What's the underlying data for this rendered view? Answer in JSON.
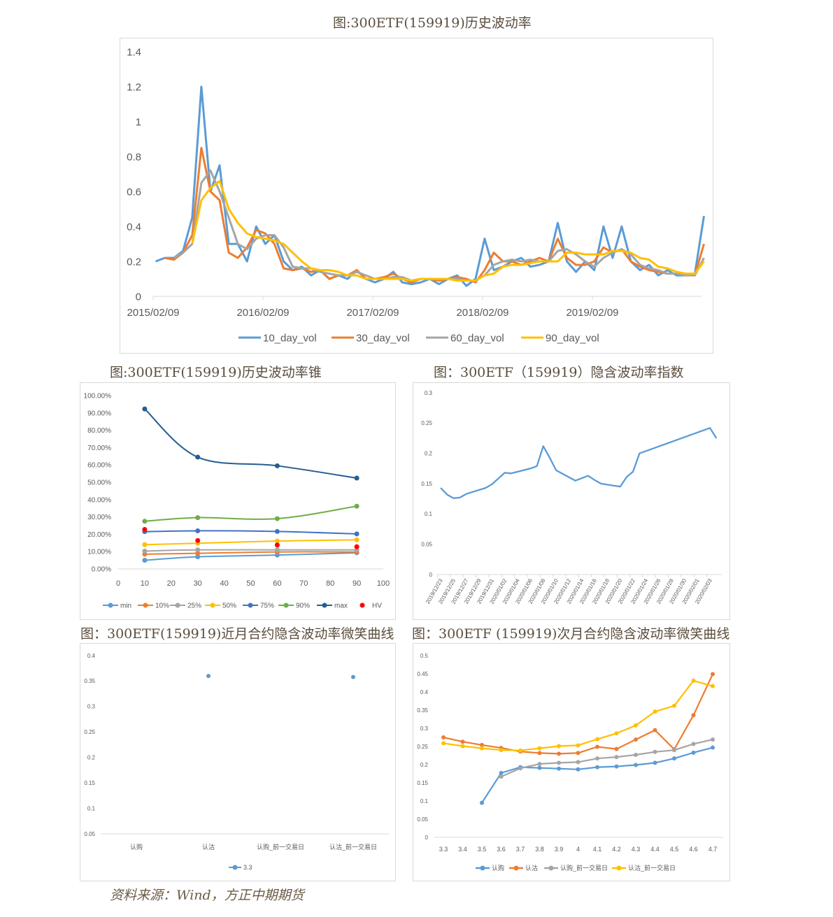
{
  "titles": {
    "hv": "图:300ETF(159919)历史波动率",
    "cone": "图:300ETF(159919)历史波动率锥",
    "ivx": "图：300ETF（159919）隐含波动率指数",
    "near": "图：300ETF(159919)近月合约隐含波动率微笑曲线",
    "next": "图：300ETF (159919)次月合约隐含波动率微笑曲线"
  },
  "source": "资料来源：Wind，方正中期期货",
  "chart_data": [
    {
      "id": "hv",
      "type": "line",
      "ylim": [
        0,
        1.4
      ],
      "yticks": [
        "0",
        "0.2",
        "0.4",
        "0.6",
        "0.8",
        "1",
        "1.2",
        "1.4"
      ],
      "xticks": [
        "2015/02/09",
        "2016/02/09",
        "2017/02/09",
        "2018/02/09",
        "2019/02/09"
      ],
      "legend": "bottom",
      "x": [
        "2015/02",
        "2015/03",
        "2015/04",
        "2015/05",
        "2015/06",
        "2015/07",
        "2015/08",
        "2015/09",
        "2015/10",
        "2015/11",
        "2015/12",
        "2016/01",
        "2016/02",
        "2016/03",
        "2016/04",
        "2016/05",
        "2016/06",
        "2016/07",
        "2016/08",
        "2016/09",
        "2016/10",
        "2016/11",
        "2016/12",
        "2017/01",
        "2017/02",
        "2017/03",
        "2017/04",
        "2017/05",
        "2017/06",
        "2017/07",
        "2017/08",
        "2017/09",
        "2017/10",
        "2017/11",
        "2017/12",
        "2018/01",
        "2018/02",
        "2018/03",
        "2018/04",
        "2018/05",
        "2018/06",
        "2018/07",
        "2018/08",
        "2018/09",
        "2018/10",
        "2018/11",
        "2018/12",
        "2019/01",
        "2019/02",
        "2019/03",
        "2019/04",
        "2019/05",
        "2019/06",
        "2019/07",
        "2019/08",
        "2019/09",
        "2019/10",
        "2019/11",
        "2019/12",
        "2020/01",
        "2020/02"
      ],
      "series": [
        {
          "name": "10_day_vol",
          "color": "#5b9bd5",
          "values": [
            0.2,
            0.22,
            0.22,
            0.26,
            0.45,
            1.2,
            0.6,
            0.75,
            0.3,
            0.3,
            0.2,
            0.4,
            0.3,
            0.35,
            0.2,
            0.15,
            0.17,
            0.12,
            0.15,
            0.1,
            0.12,
            0.1,
            0.15,
            0.1,
            0.08,
            0.1,
            0.14,
            0.08,
            0.07,
            0.08,
            0.1,
            0.07,
            0.1,
            0.12,
            0.06,
            0.1,
            0.33,
            0.15,
            0.17,
            0.2,
            0.22,
            0.17,
            0.18,
            0.2,
            0.42,
            0.2,
            0.14,
            0.2,
            0.15,
            0.4,
            0.22,
            0.4,
            0.2,
            0.15,
            0.18,
            0.12,
            0.15,
            0.12,
            0.12,
            0.13,
            0.46
          ]
        },
        {
          "name": "30_day_vol",
          "color": "#ed7d31",
          "values": [
            null,
            0.22,
            0.21,
            0.25,
            0.35,
            0.85,
            0.6,
            0.55,
            0.25,
            0.22,
            0.28,
            0.38,
            0.36,
            0.3,
            0.16,
            0.15,
            0.16,
            0.14,
            0.15,
            0.1,
            0.12,
            0.12,
            0.15,
            0.1,
            0.1,
            0.11,
            0.13,
            0.1,
            0.08,
            0.1,
            0.1,
            0.09,
            0.1,
            0.11,
            0.1,
            0.08,
            0.15,
            0.25,
            0.2,
            0.2,
            0.18,
            0.2,
            0.22,
            0.2,
            0.33,
            0.22,
            0.18,
            0.18,
            0.2,
            0.28,
            0.25,
            0.27,
            0.2,
            0.17,
            0.15,
            0.14,
            0.13,
            0.13,
            0.12,
            0.12,
            0.3
          ]
        },
        {
          "name": "60_day_vol",
          "color": "#a5a5a5",
          "values": [
            null,
            null,
            0.22,
            0.25,
            0.3,
            0.65,
            0.72,
            0.6,
            0.45,
            0.3,
            0.27,
            0.33,
            0.35,
            0.35,
            0.28,
            0.17,
            0.16,
            0.16,
            0.14,
            0.13,
            0.12,
            0.12,
            0.14,
            0.12,
            0.1,
            0.1,
            0.11,
            0.11,
            0.09,
            0.1,
            0.1,
            0.1,
            0.1,
            0.1,
            0.09,
            0.09,
            0.12,
            0.18,
            0.2,
            0.21,
            0.2,
            0.21,
            0.2,
            0.2,
            0.26,
            0.27,
            0.24,
            0.2,
            0.17,
            0.22,
            0.25,
            0.27,
            0.24,
            0.18,
            0.16,
            0.15,
            0.13,
            0.13,
            0.12,
            0.12,
            0.22
          ]
        },
        {
          "name": "90_day_vol",
          "color": "#ffc000",
          "values": [
            null,
            null,
            null,
            null,
            0.3,
            0.55,
            0.62,
            0.66,
            0.5,
            0.42,
            0.36,
            0.34,
            0.33,
            0.32,
            0.3,
            0.25,
            0.2,
            0.16,
            0.15,
            0.15,
            0.14,
            0.12,
            0.12,
            0.1,
            0.1,
            0.1,
            0.1,
            0.1,
            0.09,
            0.1,
            0.1,
            0.1,
            0.1,
            0.09,
            0.09,
            0.09,
            0.12,
            0.13,
            0.17,
            0.18,
            0.18,
            0.19,
            0.2,
            0.2,
            0.2,
            0.25,
            0.25,
            0.24,
            0.24,
            0.24,
            0.26,
            0.26,
            0.25,
            0.22,
            0.21,
            0.17,
            0.16,
            0.14,
            0.13,
            0.13,
            0.2
          ]
        }
      ]
    },
    {
      "id": "cone",
      "type": "line",
      "xlim": [
        0,
        100
      ],
      "ylim": [
        0,
        100
      ],
      "yunit": "%",
      "xticks": [
        "0",
        "10",
        "20",
        "30",
        "40",
        "50",
        "60",
        "70",
        "80",
        "90",
        "100"
      ],
      "yticks": [
        "0.00%",
        "10.00%",
        "20.00%",
        "30.00%",
        "40.00%",
        "50.00%",
        "60.00%",
        "70.00%",
        "80.00%",
        "90.00%",
        "100.00%"
      ],
      "legend": "bottom",
      "x": [
        10,
        30,
        60,
        90
      ],
      "series": [
        {
          "name": "min",
          "color": "#5b9bd5",
          "values": [
            5.0,
            7.0,
            8.0,
            9.3
          ]
        },
        {
          "name": "10%",
          "color": "#ed7d31",
          "values": [
            8.5,
            9.0,
            9.8,
            9.8
          ]
        },
        {
          "name": "25%",
          "color": "#a5a5a5",
          "values": [
            10.3,
            11.0,
            11.0,
            11.0
          ]
        },
        {
          "name": "50%",
          "color": "#ffc000",
          "values": [
            14.0,
            14.8,
            16.1,
            16.8
          ]
        },
        {
          "name": "75%",
          "color": "#4472c4",
          "values": [
            21.5,
            22.0,
            21.6,
            20.2
          ]
        },
        {
          "name": "90%",
          "color": "#70ad47",
          "values": [
            27.5,
            29.6,
            29.0,
            36.2
          ]
        },
        {
          "name": "max",
          "color": "#255e91",
          "values": [
            92.3,
            64.5,
            59.5,
            52.4
          ]
        },
        {
          "name": "HV",
          "color": "#ff0000",
          "markers_only": true,
          "values": [
            22.8,
            16.4,
            13.8,
            12.8
          ]
        }
      ]
    },
    {
      "id": "ivx",
      "type": "line",
      "ylim": [
        0,
        0.3
      ],
      "yticks": [
        "0",
        "0.05",
        "0.1",
        "0.15",
        "0.2",
        "0.25",
        "0.3"
      ],
      "xlim": [
        "2019/12/23",
        "2020/02/04"
      ],
      "xticks": [
        "2019/12/23",
        "2019/12/25",
        "2019/12/27",
        "2019/12/29",
        "2019/12/31",
        "2020/01/02",
        "2020/01/04",
        "2020/01/06",
        "2020/01/08",
        "2020/01/10",
        "2020/01/12",
        "2020/01/14",
        "2020/01/16",
        "2020/01/18",
        "2020/01/20",
        "2020/01/22",
        "2020/01/24",
        "2020/01/26",
        "2020/01/28",
        "2020/01/30",
        "2020/02/01",
        "2020/02/03"
      ],
      "x": [
        "2019/12/23",
        "2019/12/24",
        "2019/12/25",
        "2019/12/26",
        "2019/12/27",
        "2019/12/30",
        "2019/12/31",
        "2020/01/02",
        "2020/01/03",
        "2020/01/06",
        "2020/01/07",
        "2020/01/08",
        "2020/01/09",
        "2020/01/10",
        "2020/01/13",
        "2020/01/14",
        "2020/01/15",
        "2020/01/16",
        "2020/01/17",
        "2020/01/20",
        "2020/01/21",
        "2020/01/22",
        "2020/01/23",
        "2020/02/03",
        "2020/02/04"
      ],
      "series": [
        {
          "color": "#5b9bd5",
          "values": [
            0.143,
            0.132,
            0.126,
            0.127,
            0.133,
            0.143,
            0.149,
            0.168,
            0.167,
            0.175,
            0.179,
            0.212,
            0.193,
            0.172,
            0.155,
            0.159,
            0.163,
            0.156,
            0.15,
            0.145,
            0.161,
            0.17,
            0.2,
            0.242,
            0.225
          ]
        }
      ]
    },
    {
      "id": "near",
      "type": "line",
      "ylim": [
        0.05,
        0.4
      ],
      "yticks": [
        "0.05",
        "0.1",
        "0.15",
        "0.2",
        "0.25",
        "0.3",
        "0.35",
        "0.4"
      ],
      "categories": [
        "认购",
        "认沽",
        "认购_前一交易日",
        "认沽_前一交易日"
      ],
      "legend": "bottom",
      "series": [
        {
          "name": "3.3",
          "color": "#5b9bd5",
          "values": [
            null,
            0.36,
            null,
            0.358
          ]
        }
      ]
    },
    {
      "id": "next",
      "type": "line",
      "ylim": [
        0,
        0.5
      ],
      "yticks": [
        "0",
        "0.05",
        "0.1",
        "0.15",
        "0.2",
        "0.25",
        "0.3",
        "0.35",
        "0.4",
        "0.45",
        "0.5"
      ],
      "categories": [
        "3.3",
        "3.4",
        "3.5",
        "3.6",
        "3.7",
        "3.8",
        "3.9",
        "4",
        "4.1",
        "4.2",
        "4.3",
        "4.4",
        "4.5",
        "4.6",
        "4.7"
      ],
      "legend": "bottom",
      "series": [
        {
          "name": "认购",
          "color": "#5b9bd5",
          "values": [
            null,
            null,
            0.095,
            0.177,
            0.193,
            0.191,
            0.189,
            0.187,
            0.193,
            0.195,
            0.199,
            0.205,
            0.217,
            0.233,
            0.247
          ]
        },
        {
          "name": "认沽",
          "color": "#ed7d31",
          "values": [
            0.275,
            0.263,
            0.254,
            0.246,
            0.236,
            0.232,
            0.23,
            0.232,
            0.249,
            0.243,
            0.269,
            0.295,
            0.242,
            0.336,
            0.449
          ]
        },
        {
          "name": "认购_前一交易日",
          "color": "#a5a5a5",
          "values": [
            null,
            null,
            null,
            0.167,
            0.19,
            0.202,
            0.205,
            0.207,
            0.217,
            0.221,
            0.227,
            0.235,
            0.24,
            0.257,
            0.269
          ]
        },
        {
          "name": "认沽_前一交易日",
          "color": "#ffc000",
          "values": [
            0.259,
            0.251,
            0.245,
            0.24,
            0.239,
            0.245,
            0.251,
            0.253,
            0.27,
            0.286,
            0.308,
            0.346,
            0.362,
            0.431,
            0.416
          ]
        }
      ]
    }
  ]
}
